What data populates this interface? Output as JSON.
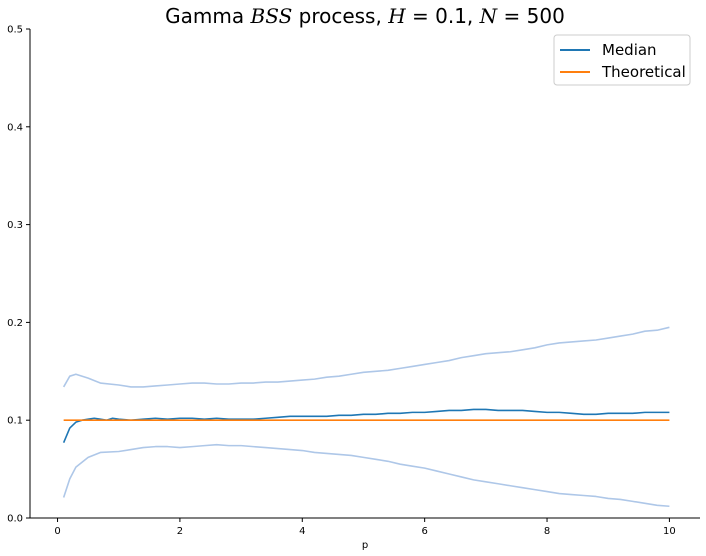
{
  "chart_data": {
    "type": "line",
    "title": {
      "prefix": "Gamma ",
      "process_symbol": "BSS",
      "middle": " process, ",
      "h_symbol": "H",
      "h_value": " = 0.1, ",
      "n_symbol": "N",
      "n_value": " = 500"
    },
    "xlabel": "p",
    "ylabel": "",
    "xlim": [
      -0.45,
      10.5
    ],
    "ylim": [
      0,
      0.5
    ],
    "x_ticks": [
      {
        "value": 0,
        "label": "0"
      },
      {
        "value": 2,
        "label": "2"
      },
      {
        "value": 4,
        "label": "4"
      },
      {
        "value": 6,
        "label": "6"
      },
      {
        "value": 8,
        "label": "8"
      },
      {
        "value": 10,
        "label": "10"
      }
    ],
    "y_ticks": [
      {
        "value": 0,
        "label": "0.0"
      },
      {
        "value": 0.1,
        "label": "0.1"
      },
      {
        "value": 0.2,
        "label": "0.2"
      },
      {
        "value": 0.3,
        "label": "0.3"
      },
      {
        "value": 0.4,
        "label": "0.4"
      },
      {
        "value": 0.5,
        "label": "0.5"
      }
    ],
    "grid": false,
    "legend_position": "top-right",
    "series": [
      {
        "key": "upper",
        "name": "",
        "color": "#aec7e8",
        "in_legend": false,
        "x": [
          0.1,
          0.2,
          0.3,
          0.5,
          0.7,
          1.0,
          1.2,
          1.4,
          1.6,
          1.8,
          2.0,
          2.2,
          2.4,
          2.6,
          2.8,
          3.0,
          3.2,
          3.4,
          3.6,
          3.8,
          4.0,
          4.2,
          4.4,
          4.6,
          4.8,
          5.0,
          5.2,
          5.4,
          5.6,
          5.8,
          6.0,
          6.2,
          6.4,
          6.6,
          6.8,
          7.0,
          7.2,
          7.4,
          7.6,
          7.8,
          8.0,
          8.2,
          8.4,
          8.6,
          8.8,
          9.0,
          9.2,
          9.4,
          9.6,
          9.8,
          10.0
        ],
        "y": [
          0.134,
          0.145,
          0.147,
          0.143,
          0.138,
          0.136,
          0.134,
          0.134,
          0.135,
          0.136,
          0.137,
          0.138,
          0.138,
          0.137,
          0.137,
          0.138,
          0.138,
          0.139,
          0.139,
          0.14,
          0.141,
          0.142,
          0.144,
          0.145,
          0.147,
          0.149,
          0.15,
          0.151,
          0.153,
          0.155,
          0.157,
          0.159,
          0.161,
          0.164,
          0.166,
          0.168,
          0.169,
          0.17,
          0.172,
          0.174,
          0.177,
          0.179,
          0.18,
          0.181,
          0.182,
          0.184,
          0.186,
          0.188,
          0.191,
          0.192,
          0.195
        ]
      },
      {
        "key": "lower",
        "name": "",
        "color": "#aec7e8",
        "in_legend": false,
        "x": [
          0.1,
          0.2,
          0.3,
          0.5,
          0.7,
          1.0,
          1.2,
          1.4,
          1.6,
          1.8,
          2.0,
          2.2,
          2.4,
          2.6,
          2.8,
          3.0,
          3.2,
          3.4,
          3.6,
          3.8,
          4.0,
          4.2,
          4.4,
          4.6,
          4.8,
          5.0,
          5.2,
          5.4,
          5.6,
          5.8,
          6.0,
          6.2,
          6.4,
          6.6,
          6.8,
          7.0,
          7.2,
          7.4,
          7.6,
          7.8,
          8.0,
          8.2,
          8.4,
          8.6,
          8.8,
          9.0,
          9.2,
          9.4,
          9.6,
          9.8,
          10.0
        ],
        "y": [
          0.021,
          0.04,
          0.052,
          0.062,
          0.067,
          0.068,
          0.07,
          0.072,
          0.073,
          0.073,
          0.072,
          0.073,
          0.074,
          0.075,
          0.074,
          0.074,
          0.073,
          0.072,
          0.071,
          0.07,
          0.069,
          0.067,
          0.066,
          0.065,
          0.064,
          0.062,
          0.06,
          0.058,
          0.055,
          0.053,
          0.051,
          0.048,
          0.045,
          0.042,
          0.039,
          0.037,
          0.035,
          0.033,
          0.031,
          0.029,
          0.027,
          0.025,
          0.024,
          0.023,
          0.022,
          0.02,
          0.019,
          0.017,
          0.015,
          0.013,
          0.012
        ]
      },
      {
        "key": "median",
        "name": "Median",
        "color": "#1f77b4",
        "in_legend": true,
        "x": [
          0.1,
          0.2,
          0.3,
          0.4,
          0.5,
          0.6,
          0.7,
          0.8,
          0.9,
          1.0,
          1.2,
          1.4,
          1.6,
          1.8,
          2.0,
          2.2,
          2.4,
          2.6,
          2.8,
          3.0,
          3.2,
          3.4,
          3.6,
          3.8,
          4.0,
          4.2,
          4.4,
          4.6,
          4.8,
          5.0,
          5.2,
          5.4,
          5.6,
          5.8,
          6.0,
          6.2,
          6.4,
          6.6,
          6.8,
          7.0,
          7.2,
          7.4,
          7.6,
          7.8,
          8.0,
          8.2,
          8.4,
          8.6,
          8.8,
          9.0,
          9.2,
          9.4,
          9.6,
          9.8,
          10.0
        ],
        "y": [
          0.077,
          0.092,
          0.098,
          0.1,
          0.101,
          0.102,
          0.101,
          0.1,
          0.102,
          0.101,
          0.1,
          0.101,
          0.102,
          0.101,
          0.102,
          0.102,
          0.101,
          0.102,
          0.101,
          0.101,
          0.101,
          0.102,
          0.103,
          0.104,
          0.104,
          0.104,
          0.104,
          0.105,
          0.105,
          0.106,
          0.106,
          0.107,
          0.107,
          0.108,
          0.108,
          0.109,
          0.11,
          0.11,
          0.111,
          0.111,
          0.11,
          0.11,
          0.11,
          0.109,
          0.108,
          0.108,
          0.107,
          0.106,
          0.106,
          0.107,
          0.107,
          0.107,
          0.108,
          0.108,
          0.108
        ]
      },
      {
        "key": "theoretical",
        "name": "Theoretical",
        "color": "#ff7f0e",
        "in_legend": true,
        "x": [
          0.1,
          10.0
        ],
        "y": [
          0.1,
          0.1
        ]
      }
    ]
  }
}
